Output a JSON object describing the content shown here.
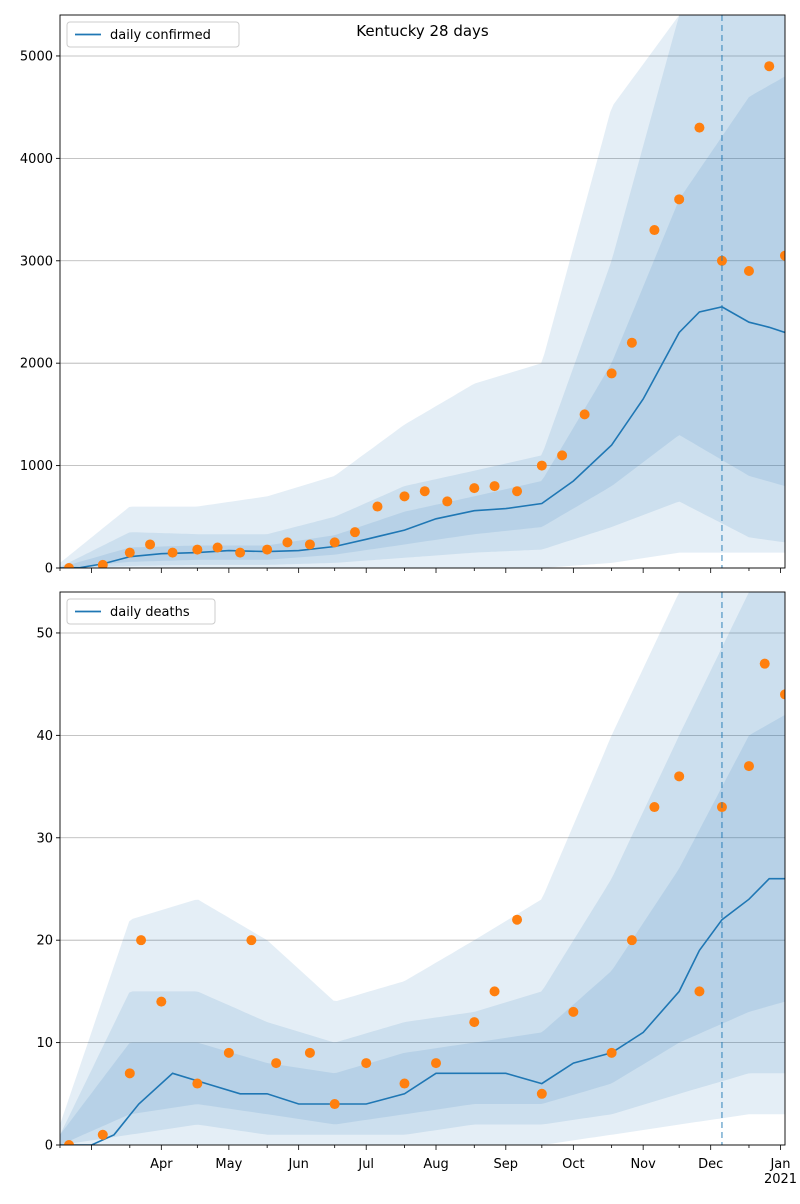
{
  "chart_data": [
    {
      "type": "line",
      "title": "Kentucky 28 days",
      "xlabel": "",
      "ylabel": "",
      "legend_position": "top-left",
      "grid": "y",
      "xlim": [
        "2020-03-01",
        "2021-01-17"
      ],
      "ylim": [
        0,
        5400
      ],
      "y_ticks": [
        0,
        1000,
        2000,
        3000,
        4000,
        5000
      ],
      "x_tick_labels": [
        {
          "date": "2020-04-01",
          "label": "Apr"
        },
        {
          "date": "2020-05-01",
          "label": "May"
        },
        {
          "date": "2020-06-01",
          "label": "Jun"
        },
        {
          "date": "2020-07-01",
          "label": "Jul"
        },
        {
          "date": "2020-08-01",
          "label": "Aug"
        },
        {
          "date": "2020-09-01",
          "label": "Sep"
        },
        {
          "date": "2020-10-01",
          "label": "Oct"
        },
        {
          "date": "2020-11-01",
          "label": "Nov"
        },
        {
          "date": "2020-12-01",
          "label": "Dec"
        },
        {
          "date": "2021-01-01",
          "label": "Jan\n2021"
        }
      ],
      "vline_date": "2020-12-20",
      "series": [
        {
          "name": "daily confirmed",
          "kind": "line",
          "color": "#1f77b4",
          "x": [
            "2020-03-01",
            "2020-03-10",
            "2020-03-20",
            "2020-04-01",
            "2020-04-15",
            "2020-05-01",
            "2020-05-15",
            "2020-06-01",
            "2020-06-15",
            "2020-07-01",
            "2020-07-15",
            "2020-08-01",
            "2020-08-15",
            "2020-09-01",
            "2020-09-15",
            "2020-10-01",
            "2020-10-15",
            "2020-11-01",
            "2020-11-15",
            "2020-12-01",
            "2020-12-10",
            "2020-12-20",
            "2021-01-01",
            "2021-01-10",
            "2021-01-17"
          ],
          "y": [
            0,
            5,
            40,
            110,
            140,
            150,
            170,
            160,
            170,
            210,
            280,
            370,
            480,
            560,
            580,
            630,
            850,
            1200,
            1650,
            2300,
            2500,
            2550,
            2400,
            2350,
            2300
          ]
        },
        {
          "name": "",
          "kind": "scatter",
          "color": "#ff7f0e",
          "x": [
            "2020-03-05",
            "2020-03-20",
            "2020-04-01",
            "2020-04-10",
            "2020-04-20",
            "2020-05-01",
            "2020-05-10",
            "2020-05-20",
            "2020-06-01",
            "2020-06-10",
            "2020-06-20",
            "2020-07-01",
            "2020-07-10",
            "2020-07-20",
            "2020-08-01",
            "2020-08-10",
            "2020-08-20",
            "2020-09-01",
            "2020-09-10",
            "2020-09-20",
            "2020-10-01",
            "2020-10-10",
            "2020-10-20",
            "2020-11-01",
            "2020-11-10",
            "2020-11-20",
            "2020-12-01",
            "2020-12-10",
            "2020-12-20",
            "2021-01-01",
            "2021-01-10",
            "2021-01-17"
          ],
          "y": [
            0,
            30,
            150,
            230,
            150,
            180,
            200,
            150,
            180,
            250,
            230,
            250,
            350,
            600,
            700,
            750,
            650,
            780,
            800,
            750,
            1000,
            1100,
            1500,
            1900,
            2200,
            3300,
            3600,
            4300,
            3000,
            2900,
            4900,
            3050
          ]
        }
      ],
      "bands": [
        {
          "x": [
            "2020-03-01",
            "2020-04-01",
            "2020-05-01",
            "2020-06-01",
            "2020-07-01",
            "2020-08-01",
            "2020-09-01",
            "2020-10-01",
            "2020-11-01",
            "2020-12-01",
            "2021-01-01",
            "2021-01-17"
          ],
          "low": [
            0,
            0,
            0,
            0,
            0,
            0,
            0,
            0,
            50,
            150,
            150,
            150
          ],
          "high": [
            50,
            600,
            600,
            700,
            900,
            1400,
            1800,
            2000,
            4500,
            5400,
            5400,
            5400
          ],
          "opacity": 0.12
        },
        {
          "x": [
            "2020-03-01",
            "2020-04-01",
            "2020-05-01",
            "2020-06-01",
            "2020-07-01",
            "2020-08-01",
            "2020-09-01",
            "2020-10-01",
            "2020-11-01",
            "2020-12-01",
            "2021-01-01",
            "2021-01-17"
          ],
          "low": [
            0,
            20,
            30,
            30,
            50,
            100,
            150,
            180,
            400,
            650,
            300,
            250
          ],
          "high": [
            10,
            350,
            330,
            330,
            500,
            800,
            950,
            1100,
            3000,
            5400,
            5400,
            5400
          ],
          "opacity": 0.12
        },
        {
          "x": [
            "2020-03-01",
            "2020-04-01",
            "2020-05-01",
            "2020-06-01",
            "2020-07-01",
            "2020-08-01",
            "2020-09-01",
            "2020-10-01",
            "2020-11-01",
            "2020-12-01",
            "2021-01-01",
            "2021-01-17"
          ],
          "low": [
            0,
            60,
            80,
            80,
            130,
            230,
            330,
            400,
            800,
            1300,
            900,
            800
          ],
          "high": [
            5,
            200,
            220,
            220,
            320,
            550,
            700,
            850,
            2000,
            3600,
            4600,
            4800
          ],
          "opacity": 0.12
        }
      ]
    },
    {
      "type": "line",
      "title": "",
      "xlabel": "",
      "ylabel": "",
      "legend_position": "top-left",
      "grid": "y",
      "xlim": [
        "2020-03-01",
        "2021-01-17"
      ],
      "ylim": [
        0,
        54
      ],
      "y_ticks": [
        0,
        10,
        20,
        30,
        40,
        50
      ],
      "x_tick_labels": [
        {
          "date": "2020-04-01",
          "label": "Apr"
        },
        {
          "date": "2020-05-01",
          "label": "May"
        },
        {
          "date": "2020-06-01",
          "label": "Jun"
        },
        {
          "date": "2020-07-01",
          "label": "Jul"
        },
        {
          "date": "2020-08-01",
          "label": "Aug"
        },
        {
          "date": "2020-09-01",
          "label": "Sep"
        },
        {
          "date": "2020-10-01",
          "label": "Oct"
        },
        {
          "date": "2020-11-01",
          "label": "Nov"
        },
        {
          "date": "2020-12-01",
          "label": "Dec"
        },
        {
          "date": "2021-01-01",
          "label": "Jan\n2021"
        }
      ],
      "vline_date": "2020-12-20",
      "series": [
        {
          "name": "daily deaths",
          "kind": "line",
          "color": "#1f77b4",
          "x": [
            "2020-03-01",
            "2020-03-15",
            "2020-03-25",
            "2020-04-05",
            "2020-04-20",
            "2020-05-05",
            "2020-05-20",
            "2020-06-01",
            "2020-06-15",
            "2020-07-01",
            "2020-07-15",
            "2020-08-01",
            "2020-08-15",
            "2020-09-01",
            "2020-09-15",
            "2020-10-01",
            "2020-10-15",
            "2020-11-01",
            "2020-11-15",
            "2020-12-01",
            "2020-12-10",
            "2020-12-20",
            "2021-01-01",
            "2021-01-10",
            "2021-01-17"
          ],
          "y": [
            0,
            0,
            1,
            4,
            7,
            6,
            5,
            5,
            4,
            4,
            4,
            5,
            7,
            7,
            7,
            6,
            8,
            9,
            11,
            15,
            19,
            22,
            24,
            26,
            26
          ]
        },
        {
          "name": "",
          "kind": "scatter",
          "color": "#ff7f0e",
          "x": [
            "2020-03-05",
            "2020-03-20",
            "2020-04-01",
            "2020-04-06",
            "2020-04-15",
            "2020-05-01",
            "2020-05-15",
            "2020-05-25",
            "2020-06-05",
            "2020-06-20",
            "2020-07-01",
            "2020-07-15",
            "2020-08-01",
            "2020-08-15",
            "2020-09-01",
            "2020-09-10",
            "2020-09-20",
            "2020-10-01",
            "2020-10-15",
            "2020-11-01",
            "2020-11-10",
            "2020-11-20",
            "2020-12-01",
            "2020-12-10",
            "2020-12-20",
            "2021-01-01",
            "2021-01-08",
            "2021-01-17"
          ],
          "y": [
            0,
            1,
            7,
            20,
            14,
            6,
            9,
            20,
            8,
            9,
            4,
            8,
            6,
            8,
            12,
            15,
            22,
            5,
            13,
            9,
            20,
            33,
            36,
            15,
            33,
            37,
            47,
            44
          ]
        }
      ],
      "bands": [
        {
          "x": [
            "2020-03-01",
            "2020-04-01",
            "2020-05-01",
            "2020-06-01",
            "2020-07-01",
            "2020-08-01",
            "2020-09-01",
            "2020-10-01",
            "2020-11-01",
            "2020-12-01",
            "2021-01-01",
            "2021-01-17"
          ],
          "low": [
            0,
            0,
            0,
            0,
            0,
            0,
            0,
            0,
            1,
            2,
            3,
            3
          ],
          "high": [
            2,
            22,
            24,
            20,
            14,
            16,
            20,
            24,
            40,
            54,
            54,
            54
          ],
          "opacity": 0.12
        },
        {
          "x": [
            "2020-03-01",
            "2020-04-01",
            "2020-05-01",
            "2020-06-01",
            "2020-07-01",
            "2020-08-01",
            "2020-09-01",
            "2020-10-01",
            "2020-11-01",
            "2020-12-01",
            "2021-01-01",
            "2021-01-17"
          ],
          "low": [
            0,
            1,
            2,
            1,
            1,
            1,
            2,
            2,
            3,
            5,
            7,
            7
          ],
          "high": [
            1,
            15,
            15,
            12,
            10,
            12,
            13,
            15,
            26,
            40,
            54,
            54
          ],
          "opacity": 0.12
        },
        {
          "x": [
            "2020-03-01",
            "2020-04-01",
            "2020-05-01",
            "2020-06-01",
            "2020-07-01",
            "2020-08-01",
            "2020-09-01",
            "2020-10-01",
            "2020-11-01",
            "2020-12-01",
            "2021-01-01",
            "2021-01-17"
          ],
          "low": [
            0,
            3,
            4,
            3,
            2,
            3,
            4,
            4,
            6,
            10,
            13,
            14
          ],
          "high": [
            1,
            10,
            10,
            8,
            7,
            9,
            10,
            11,
            17,
            27,
            40,
            42
          ],
          "opacity": 0.12
        }
      ]
    }
  ]
}
